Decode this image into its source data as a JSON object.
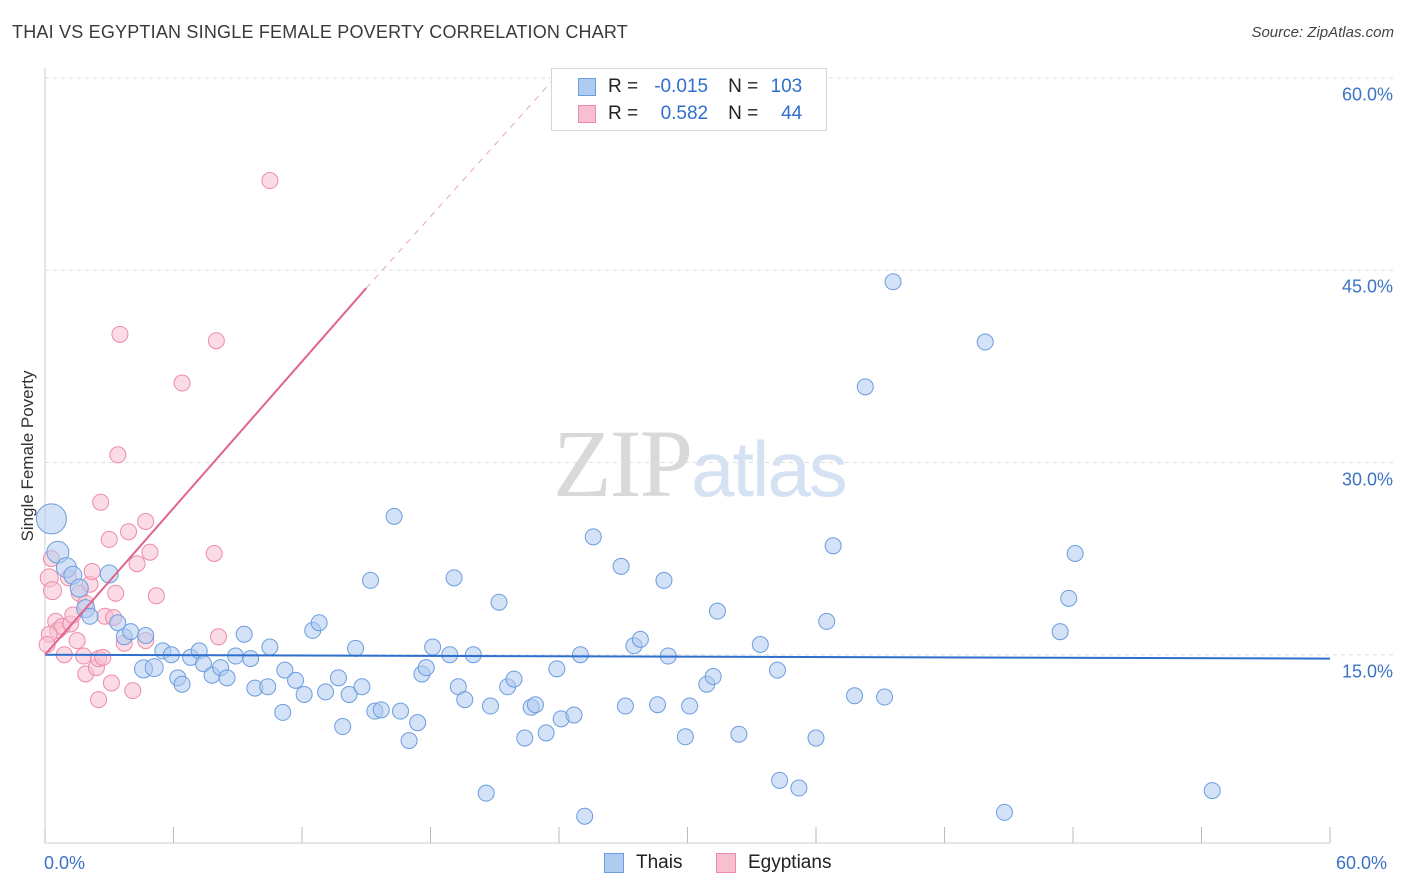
{
  "header": {
    "title": "THAI VS EGYPTIAN SINGLE FEMALE POVERTY CORRELATION CHART",
    "source": "Source: ZipAtlas.com"
  },
  "legend": {
    "r_label": "R =",
    "n_label": "N =",
    "thais": {
      "r": "-0.015",
      "n": "103"
    },
    "egyptians": {
      "r": "0.582",
      "n": "44"
    }
  },
  "bottom_legend": {
    "thais": "Thais",
    "egyptians": "Egyptians"
  },
  "watermark": {
    "zip": "ZIP",
    "atlas": "atlas"
  },
  "colors": {
    "thais_fill": "#aecbf0",
    "thais_stroke": "#6b9ddf",
    "thais_line": "#2f6fce",
    "egyptians_fill": "#f7bfd0",
    "egyptians_stroke": "#ee8aaa",
    "egyptians_line": "#e0648c",
    "grid": "#dddddd",
    "tick_text": "#3b73c4"
  },
  "chart_data": {
    "type": "scatter",
    "title": "THAI VS EGYPTIAN SINGLE FEMALE POVERTY CORRELATION CHART",
    "xlabel": "",
    "ylabel": "Single Female Poverty",
    "xlim": [
      0,
      60
    ],
    "ylim": [
      0,
      60
    ],
    "x_tick_labels": [
      "0.0%",
      "60.0%"
    ],
    "y_tick_labels": [
      {
        "value": 15,
        "label": "15.0%"
      },
      {
        "value": 30,
        "label": "30.0%"
      },
      {
        "value": 45,
        "label": "45.0%"
      },
      {
        "value": 60,
        "label": "60.0%"
      }
    ],
    "legend_position": "top-center",
    "series": [
      {
        "name": "Thais",
        "r": -0.015,
        "n": 103,
        "trend": {
          "x0": 0,
          "y0": 15.0,
          "x1": 60,
          "y1": 14.7
        },
        "points": [
          [
            0.3,
            25.6,
            15
          ],
          [
            0.6,
            23.0,
            11
          ],
          [
            1.0,
            21.8,
            10
          ],
          [
            1.3,
            21.2,
            9
          ],
          [
            1.6,
            20.2,
            9
          ],
          [
            1.9,
            18.6,
            9
          ],
          [
            2.1,
            18.0,
            8
          ],
          [
            3.0,
            21.3,
            9
          ],
          [
            3.4,
            17.5,
            8
          ],
          [
            3.7,
            16.4,
            8
          ],
          [
            4.0,
            16.8,
            8
          ],
          [
            4.6,
            13.9,
            9
          ],
          [
            4.7,
            16.5,
            8
          ],
          [
            5.1,
            14.0,
            9
          ],
          [
            5.5,
            15.3,
            8
          ],
          [
            5.9,
            15.0,
            8
          ],
          [
            6.2,
            13.2,
            8
          ],
          [
            6.4,
            12.7,
            8
          ],
          [
            6.8,
            14.8,
            8
          ],
          [
            7.2,
            15.3,
            8
          ],
          [
            7.4,
            14.3,
            8
          ],
          [
            7.8,
            13.4,
            8
          ],
          [
            8.2,
            14.0,
            8
          ],
          [
            8.5,
            13.2,
            8
          ],
          [
            8.9,
            14.9,
            8
          ],
          [
            9.3,
            16.6,
            8
          ],
          [
            9.6,
            14.7,
            8
          ],
          [
            9.8,
            12.4,
            8
          ],
          [
            10.4,
            12.5,
            8
          ],
          [
            10.5,
            15.6,
            8
          ],
          [
            11.1,
            10.5,
            8
          ],
          [
            11.2,
            13.8,
            8
          ],
          [
            11.7,
            13.0,
            8
          ],
          [
            12.1,
            11.9,
            8
          ],
          [
            12.5,
            16.9,
            8
          ],
          [
            12.8,
            17.5,
            8
          ],
          [
            13.1,
            12.1,
            8
          ],
          [
            13.7,
            13.2,
            8
          ],
          [
            13.9,
            9.4,
            8
          ],
          [
            14.2,
            11.9,
            8
          ],
          [
            14.5,
            15.5,
            8
          ],
          [
            14.8,
            12.5,
            8
          ],
          [
            15.2,
            20.8,
            8
          ],
          [
            15.4,
            10.6,
            8
          ],
          [
            15.7,
            10.7,
            8
          ],
          [
            16.3,
            25.8,
            8
          ],
          [
            16.6,
            10.6,
            8
          ],
          [
            17.0,
            8.3,
            8
          ],
          [
            17.4,
            9.7,
            8
          ],
          [
            17.6,
            13.5,
            8
          ],
          [
            17.8,
            14.0,
            8
          ],
          [
            18.1,
            15.6,
            8
          ],
          [
            18.9,
            15.0,
            8
          ],
          [
            19.1,
            21.0,
            8
          ],
          [
            19.3,
            12.5,
            8
          ],
          [
            19.6,
            11.5,
            8
          ],
          [
            20.0,
            15.0,
            8
          ],
          [
            20.6,
            4.2,
            8
          ],
          [
            20.8,
            11.0,
            8
          ],
          [
            21.2,
            19.1,
            8
          ],
          [
            21.6,
            12.5,
            8
          ],
          [
            21.9,
            13.1,
            8
          ],
          [
            22.4,
            8.5,
            8
          ],
          [
            22.7,
            10.9,
            8
          ],
          [
            22.9,
            11.1,
            8
          ],
          [
            23.4,
            8.9,
            8
          ],
          [
            23.9,
            13.9,
            8
          ],
          [
            24.1,
            10.0,
            8
          ],
          [
            24.7,
            10.3,
            8
          ],
          [
            25.0,
            15.0,
            8
          ],
          [
            25.2,
            2.4,
            8
          ],
          [
            25.6,
            24.2,
            8
          ],
          [
            26.9,
            21.9,
            8
          ],
          [
            27.1,
            11.0,
            8
          ],
          [
            27.5,
            15.7,
            8
          ],
          [
            27.8,
            16.2,
            8
          ],
          [
            28.6,
            11.1,
            8
          ],
          [
            28.9,
            20.8,
            8
          ],
          [
            29.1,
            14.9,
            8
          ],
          [
            29.9,
            8.6,
            8
          ],
          [
            30.1,
            11.0,
            8
          ],
          [
            30.9,
            12.7,
            8
          ],
          [
            31.2,
            13.3,
            8
          ],
          [
            31.4,
            18.4,
            8
          ],
          [
            32.4,
            8.8,
            8
          ],
          [
            33.4,
            15.8,
            8
          ],
          [
            34.2,
            13.8,
            8
          ],
          [
            34.3,
            5.2,
            8
          ],
          [
            35.2,
            4.6,
            8
          ],
          [
            36.0,
            8.5,
            8
          ],
          [
            36.5,
            17.6,
            8
          ],
          [
            36.8,
            23.5,
            8
          ],
          [
            37.8,
            11.8,
            8
          ],
          [
            38.3,
            35.9,
            8
          ],
          [
            39.2,
            11.7,
            8
          ],
          [
            39.6,
            44.1,
            8
          ],
          [
            43.9,
            39.4,
            8
          ],
          [
            44.8,
            2.7,
            8
          ],
          [
            47.4,
            16.8,
            8
          ],
          [
            47.8,
            19.4,
            8
          ],
          [
            48.1,
            22.9,
            8
          ],
          [
            54.5,
            4.4,
            8
          ]
        ]
      },
      {
        "name": "Egyptians",
        "r": 0.582,
        "n": 44,
        "trend": {
          "x0": 0,
          "y0": 15.0,
          "x1": 15.0,
          "y1": 43.6
        },
        "trend_extension": {
          "x0": 15.0,
          "y0": 43.6,
          "x1": 23.8,
          "y1": 60.0
        },
        "points": [
          [
            0.2,
            21.0,
            9
          ],
          [
            0.3,
            22.5,
            8
          ],
          [
            0.35,
            20.0,
            9
          ],
          [
            0.5,
            17.6,
            8
          ],
          [
            0.6,
            16.9,
            8
          ],
          [
            0.8,
            17.2,
            8
          ],
          [
            0.9,
            15.0,
            8
          ],
          [
            1.1,
            21.0,
            8
          ],
          [
            1.2,
            17.4,
            8
          ],
          [
            1.3,
            18.1,
            8
          ],
          [
            1.5,
            16.1,
            8
          ],
          [
            1.6,
            19.8,
            8
          ],
          [
            1.8,
            14.9,
            8
          ],
          [
            1.9,
            19.0,
            8
          ],
          [
            1.9,
            13.5,
            8
          ],
          [
            2.1,
            20.5,
            8
          ],
          [
            2.2,
            21.5,
            8
          ],
          [
            2.4,
            14.0,
            8
          ],
          [
            2.5,
            14.7,
            8
          ],
          [
            2.5,
            11.5,
            8
          ],
          [
            2.6,
            26.9,
            8
          ],
          [
            2.7,
            14.8,
            8
          ],
          [
            2.8,
            18.0,
            8
          ],
          [
            3.0,
            24.0,
            8
          ],
          [
            3.1,
            12.8,
            8
          ],
          [
            3.2,
            17.9,
            8
          ],
          [
            3.3,
            19.8,
            8
          ],
          [
            3.4,
            30.6,
            8
          ],
          [
            3.5,
            40.0,
            8
          ],
          [
            3.7,
            15.9,
            8
          ],
          [
            3.9,
            24.6,
            8
          ],
          [
            4.1,
            12.2,
            8
          ],
          [
            4.3,
            22.1,
            8
          ],
          [
            4.7,
            16.1,
            8
          ],
          [
            4.7,
            25.4,
            8
          ],
          [
            4.9,
            23.0,
            8
          ],
          [
            5.2,
            19.6,
            8
          ],
          [
            6.4,
            36.2,
            8
          ],
          [
            7.9,
            22.9,
            8
          ],
          [
            8.0,
            39.5,
            8
          ],
          [
            8.1,
            16.4,
            8
          ],
          [
            10.5,
            52.0,
            8
          ],
          [
            0.2,
            16.6,
            8
          ],
          [
            0.1,
            15.8,
            8
          ]
        ]
      }
    ]
  }
}
